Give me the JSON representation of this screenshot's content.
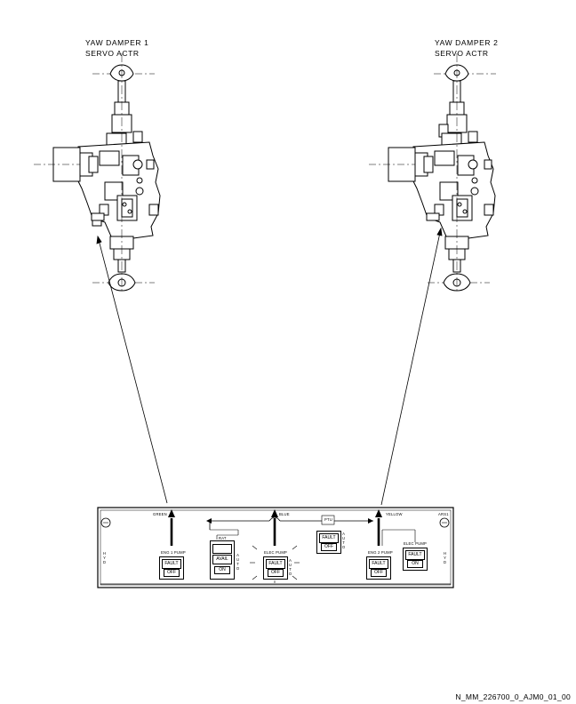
{
  "labels": {
    "yd1_line1": "YAW DAMPER 1",
    "yd1_line2": "SERVO ACTR",
    "yd2_line1": "YAW DAMPER 2",
    "yd2_line2": "SERVO ACTR"
  },
  "panel": {
    "green": "GREEN",
    "blue": "BLUE",
    "yellow": "YELLOW",
    "ptu_title": "PTU",
    "ptu_fault": "FAULT",
    "ptu_off": "OFF",
    "ptu_auto": "AUTO",
    "hyd_left": "HYD",
    "hyd_right": "HYD",
    "panel_id": "ARS1",
    "eng1_title": "ENG 1 PUMP",
    "eng1_fault": "FAULT",
    "eng1_off": "OFF",
    "rat_title": "RAT",
    "rat_avail": "AVAIL",
    "rat_on": "ON",
    "rat_auto": "AUTO",
    "elec_title": "ELEC PUMP",
    "elec_fault": "FAULT",
    "elec_off": "OFF",
    "elec_auto": "AUTO",
    "eng2_title": "ENG 2 PUMP",
    "eng2_fault": "FAULT",
    "eng2_off": "OFF",
    "yelec_title": "ELEC PUMP",
    "yelec_fault": "FAULT",
    "yelec_on": "ON"
  },
  "footer": {
    "reference": "N_MM_226700_0_AJM0_01_00"
  }
}
